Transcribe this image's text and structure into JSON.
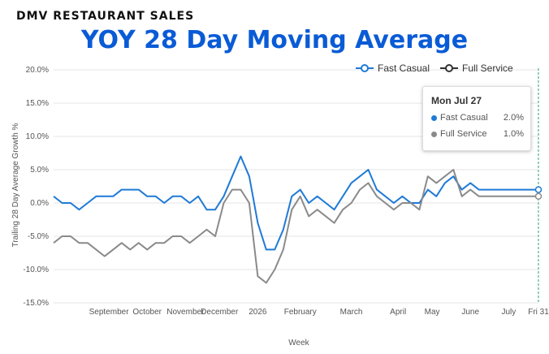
{
  "header": {
    "kicker": "DMV RESTAURANT SALES",
    "title": "YOY 28 Day Moving Average"
  },
  "tooltip": {
    "date": "Mon Jul 27",
    "rows": [
      {
        "name": "Fast Casual",
        "value": "2.0%"
      },
      {
        "name": "Full Service",
        "value": "1.0%"
      }
    ]
  },
  "colors": {
    "fast_casual": "#1f7ad6",
    "full_service": "#8a8a8a",
    "cursor": "#2aa06a"
  },
  "chart_data": {
    "type": "line",
    "title": "YOY 28 Day Moving Average",
    "xlabel": "Week",
    "ylabel": "Trailing 28 Day Average Growth %",
    "ylim": [
      -15,
      20
    ],
    "y_ticks": [
      "20.0%",
      "15.0%",
      "10.0%",
      "5.0%",
      "0.0%",
      "-5.0%",
      "-10.0%",
      "-15.0%"
    ],
    "y_tick_values": [
      20,
      15,
      10,
      5,
      0,
      -5,
      -10,
      -15
    ],
    "x_tick_labels": [
      "September",
      "October",
      "November",
      "December",
      "2026",
      "February",
      "March",
      "April",
      "May",
      "June",
      "July",
      "Fri 31"
    ],
    "x_tick_positions": [
      6.5,
      11,
      15.5,
      19.5,
      24,
      29,
      35,
      40.5,
      44.5,
      49,
      53.5,
      57
    ],
    "x_range": [
      0,
      57
    ],
    "grid": true,
    "legend_position": "top-right",
    "x": [
      0,
      1,
      2,
      3,
      4,
      5,
      6,
      7,
      8,
      9,
      10,
      11,
      12,
      13,
      14,
      15,
      16,
      17,
      18,
      19,
      20,
      21,
      22,
      23,
      24,
      25,
      26,
      27,
      28,
      29,
      30,
      31,
      32,
      33,
      34,
      35,
      36,
      37,
      38,
      39,
      40,
      41,
      42,
      43,
      44,
      45,
      46,
      47,
      48,
      49,
      50,
      51,
      52,
      53,
      54,
      55,
      56,
      57
    ],
    "series": [
      {
        "name": "Fast Casual",
        "values": [
          1,
          0,
          0,
          -1,
          0,
          1,
          1,
          1,
          2,
          2,
          2,
          1,
          1,
          0,
          1,
          1,
          0,
          1,
          -1,
          -1,
          1,
          4,
          7,
          4,
          -3,
          -7,
          -7,
          -4,
          1,
          2,
          0,
          1,
          0,
          -1,
          1,
          3,
          4,
          5,
          2,
          1,
          0,
          1,
          0,
          0,
          2,
          1,
          3,
          4,
          2,
          3,
          2,
          2,
          null,
          null,
          null,
          null,
          null,
          null
        ]
      },
      {
        "name": "Full Service",
        "values": [
          -6,
          -5,
          -5,
          -6,
          -6,
          -7,
          -8,
          -7,
          -6,
          -7,
          -6,
          -7,
          -6,
          -6,
          -5,
          -5,
          -6,
          -5,
          -4,
          -5,
          0,
          2,
          2,
          0,
          -11,
          -12,
          -10,
          -7,
          -1,
          1,
          -2,
          -1,
          -2,
          -3,
          -1,
          0,
          2,
          3,
          1,
          0,
          -1,
          0,
          0,
          -1,
          4,
          3,
          4,
          5,
          1,
          2,
          1,
          1,
          null,
          null,
          null,
          null,
          null,
          null
        ]
      }
    ]
  }
}
